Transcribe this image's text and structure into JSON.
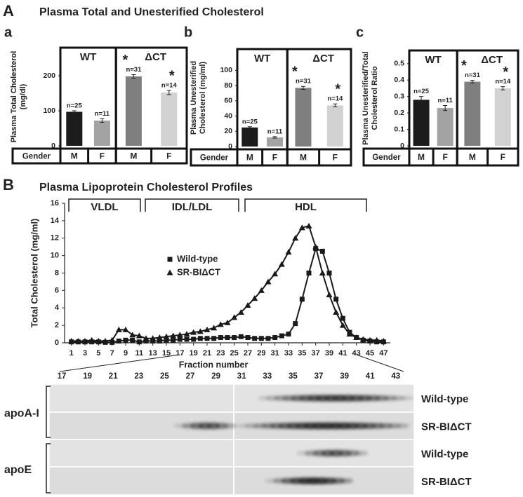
{
  "figure": {
    "panel_A": "A",
    "panel_A_title": "Plasma Total and Unesterified Cholesterol",
    "panel_B": "B"
  },
  "chart_data": [
    {
      "type": "bar",
      "panel": "a",
      "ylabel": [
        "Plasma Total Cholesterol",
        "(mg/dl)"
      ],
      "categories": [
        "M",
        "F",
        "M",
        "F"
      ],
      "row_label": "Gender",
      "groups": [
        "WT",
        "ΔCT"
      ],
      "values": [
        97,
        72,
        198,
        152
      ],
      "errors": [
        3,
        5,
        5,
        6
      ],
      "n_labels": [
        "n=25",
        "n=11",
        "n=31",
        "n=14"
      ],
      "significance": [
        null,
        null,
        "*",
        "*"
      ],
      "colors": [
        "#1c1c1c",
        "#a3a3a3",
        "#7f7f7f",
        "#d2d2d2"
      ],
      "ylim": [
        0,
        280
      ],
      "yticks": [
        0,
        100,
        200
      ]
    },
    {
      "type": "bar",
      "panel": "b",
      "ylabel": [
        "Plasma Unesterified",
        "Cholesterol (mg/ml)"
      ],
      "categories": [
        "M",
        "F",
        "M",
        "F"
      ],
      "row_label": "Gender",
      "groups": [
        "WT",
        "ΔCT"
      ],
      "values": [
        25,
        12,
        77,
        54
      ],
      "errors": [
        1,
        1,
        2,
        2
      ],
      "n_labels": [
        "n=25",
        "n=11",
        "n=31",
        "n=14"
      ],
      "significance": [
        null,
        null,
        "*",
        "*"
      ],
      "colors": [
        "#1c1c1c",
        "#a3a3a3",
        "#7f7f7f",
        "#d2d2d2"
      ],
      "ylim": [
        0,
        128
      ],
      "yticks": [
        0,
        20,
        40,
        60,
        80,
        100
      ]
    },
    {
      "type": "bar",
      "panel": "c",
      "ylabel": [
        "Plasma Unesterified/Total",
        "Cholesterol Ratio"
      ],
      "categories": [
        "M",
        "F",
        "M",
        "F"
      ],
      "row_label": "Gender",
      "groups": [
        "WT",
        "ΔCT"
      ],
      "values": [
        0.28,
        0.23,
        0.39,
        0.35
      ],
      "errors": [
        0.02,
        0.015,
        0.008,
        0.01
      ],
      "n_labels": [
        "n=25",
        "n=11",
        "n=31",
        "n=14"
      ],
      "significance": [
        null,
        null,
        "*",
        "*"
      ],
      "colors": [
        "#1c1c1c",
        "#a3a3a3",
        "#7f7f7f",
        "#d2d2d2"
      ],
      "ylim": [
        0,
        0.58
      ],
      "yticks": [
        0,
        0.1,
        0.2,
        0.3,
        0.4,
        0.5
      ]
    },
    {
      "type": "line",
      "title": "Plasma Lipoprotein Cholesterol Profiles",
      "regions": [
        "VLDL",
        "IDL/LDL",
        "HDL"
      ],
      "xlabel": "Fraction number",
      "ylabel": "Total Cholesterol (mg/ml)",
      "x": [
        1,
        2,
        3,
        4,
        5,
        6,
        7,
        8,
        9,
        10,
        11,
        12,
        13,
        14,
        15,
        16,
        17,
        18,
        19,
        20,
        21,
        22,
        23,
        24,
        25,
        26,
        27,
        28,
        29,
        30,
        31,
        32,
        33,
        34,
        35,
        36,
        37,
        38,
        39,
        40,
        41,
        42,
        43,
        44,
        45,
        46,
        47
      ],
      "series": [
        {
          "name": "Wild-type",
          "marker": "square",
          "color": "#1a1a1a",
          "values": [
            0.1,
            0.1,
            0.1,
            0.1,
            0.1,
            0.05,
            0.05,
            0.2,
            0.3,
            0.3,
            0.1,
            0.2,
            0.2,
            0.2,
            0.3,
            0.3,
            0.4,
            0.4,
            0.4,
            0.5,
            0.5,
            0.5,
            0.6,
            0.6,
            0.6,
            0.7,
            0.6,
            0.5,
            0.5,
            0.5,
            0.6,
            0.8,
            1.0,
            2.2,
            5.0,
            8.0,
            10.8,
            10.5,
            8.0,
            5.0,
            2.8,
            1.2,
            0.6,
            0.3,
            0.2,
            0.1,
            0.1
          ]
        },
        {
          "name": "SR-BIΔCT",
          "marker": "triangle",
          "color": "#1a1a1a",
          "values": [
            0.2,
            0.2,
            0.2,
            0.3,
            0.2,
            0.2,
            0.3,
            1.5,
            1.5,
            0.9,
            0.8,
            0.5,
            0.5,
            0.6,
            0.7,
            0.8,
            0.9,
            1.0,
            1.2,
            1.3,
            1.5,
            1.7,
            2.1,
            2.3,
            2.9,
            3.5,
            4.3,
            5.1,
            6.0,
            7.0,
            7.9,
            9.0,
            10.4,
            12.0,
            13.2,
            13.4,
            11.0,
            8.0,
            5.5,
            3.5,
            2.0,
            1.0,
            0.6,
            0.4,
            0.3,
            0.3,
            0.2
          ]
        }
      ],
      "xlim": [
        0,
        48
      ],
      "xticks": [
        1,
        3,
        5,
        7,
        9,
        11,
        13,
        15,
        17,
        19,
        21,
        23,
        25,
        27,
        29,
        31,
        33,
        35,
        37,
        39,
        41,
        43,
        45,
        47
      ],
      "ylim": [
        0,
        16
      ],
      "yticks": [
        0,
        2,
        4,
        6,
        8,
        10,
        12,
        14,
        16
      ]
    }
  ],
  "blot": {
    "lanes": [
      17,
      19,
      21,
      23,
      25,
      27,
      29,
      31,
      33,
      35,
      37,
      39,
      41,
      43
    ],
    "proteins": [
      "apoA-I",
      "apoE"
    ],
    "rows": [
      "Wild-type",
      "SR-BIΔCT",
      "Wild-type",
      "SR-BIΔCT"
    ]
  }
}
